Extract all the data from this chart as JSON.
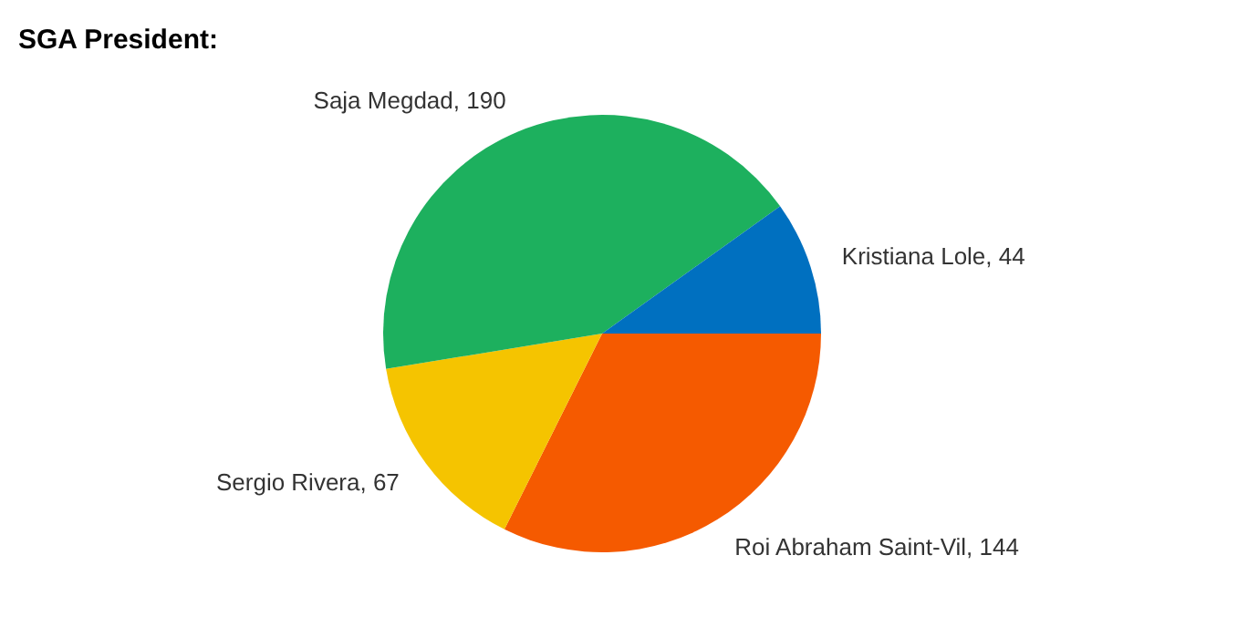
{
  "chart_data": {
    "type": "pie",
    "title": "SGA President:",
    "categories": [
      "Roi Abraham Saint-Vil, 144",
      "Sergio Rivera, 67",
      "Saja Megdad, 190",
      "Kristiana Lole, 44"
    ],
    "values": [
      144,
      67,
      190,
      44
    ],
    "colors": [
      "#f55a00",
      "#f5c400",
      "#1db05e",
      "#0070c0"
    ],
    "legend": false
  }
}
